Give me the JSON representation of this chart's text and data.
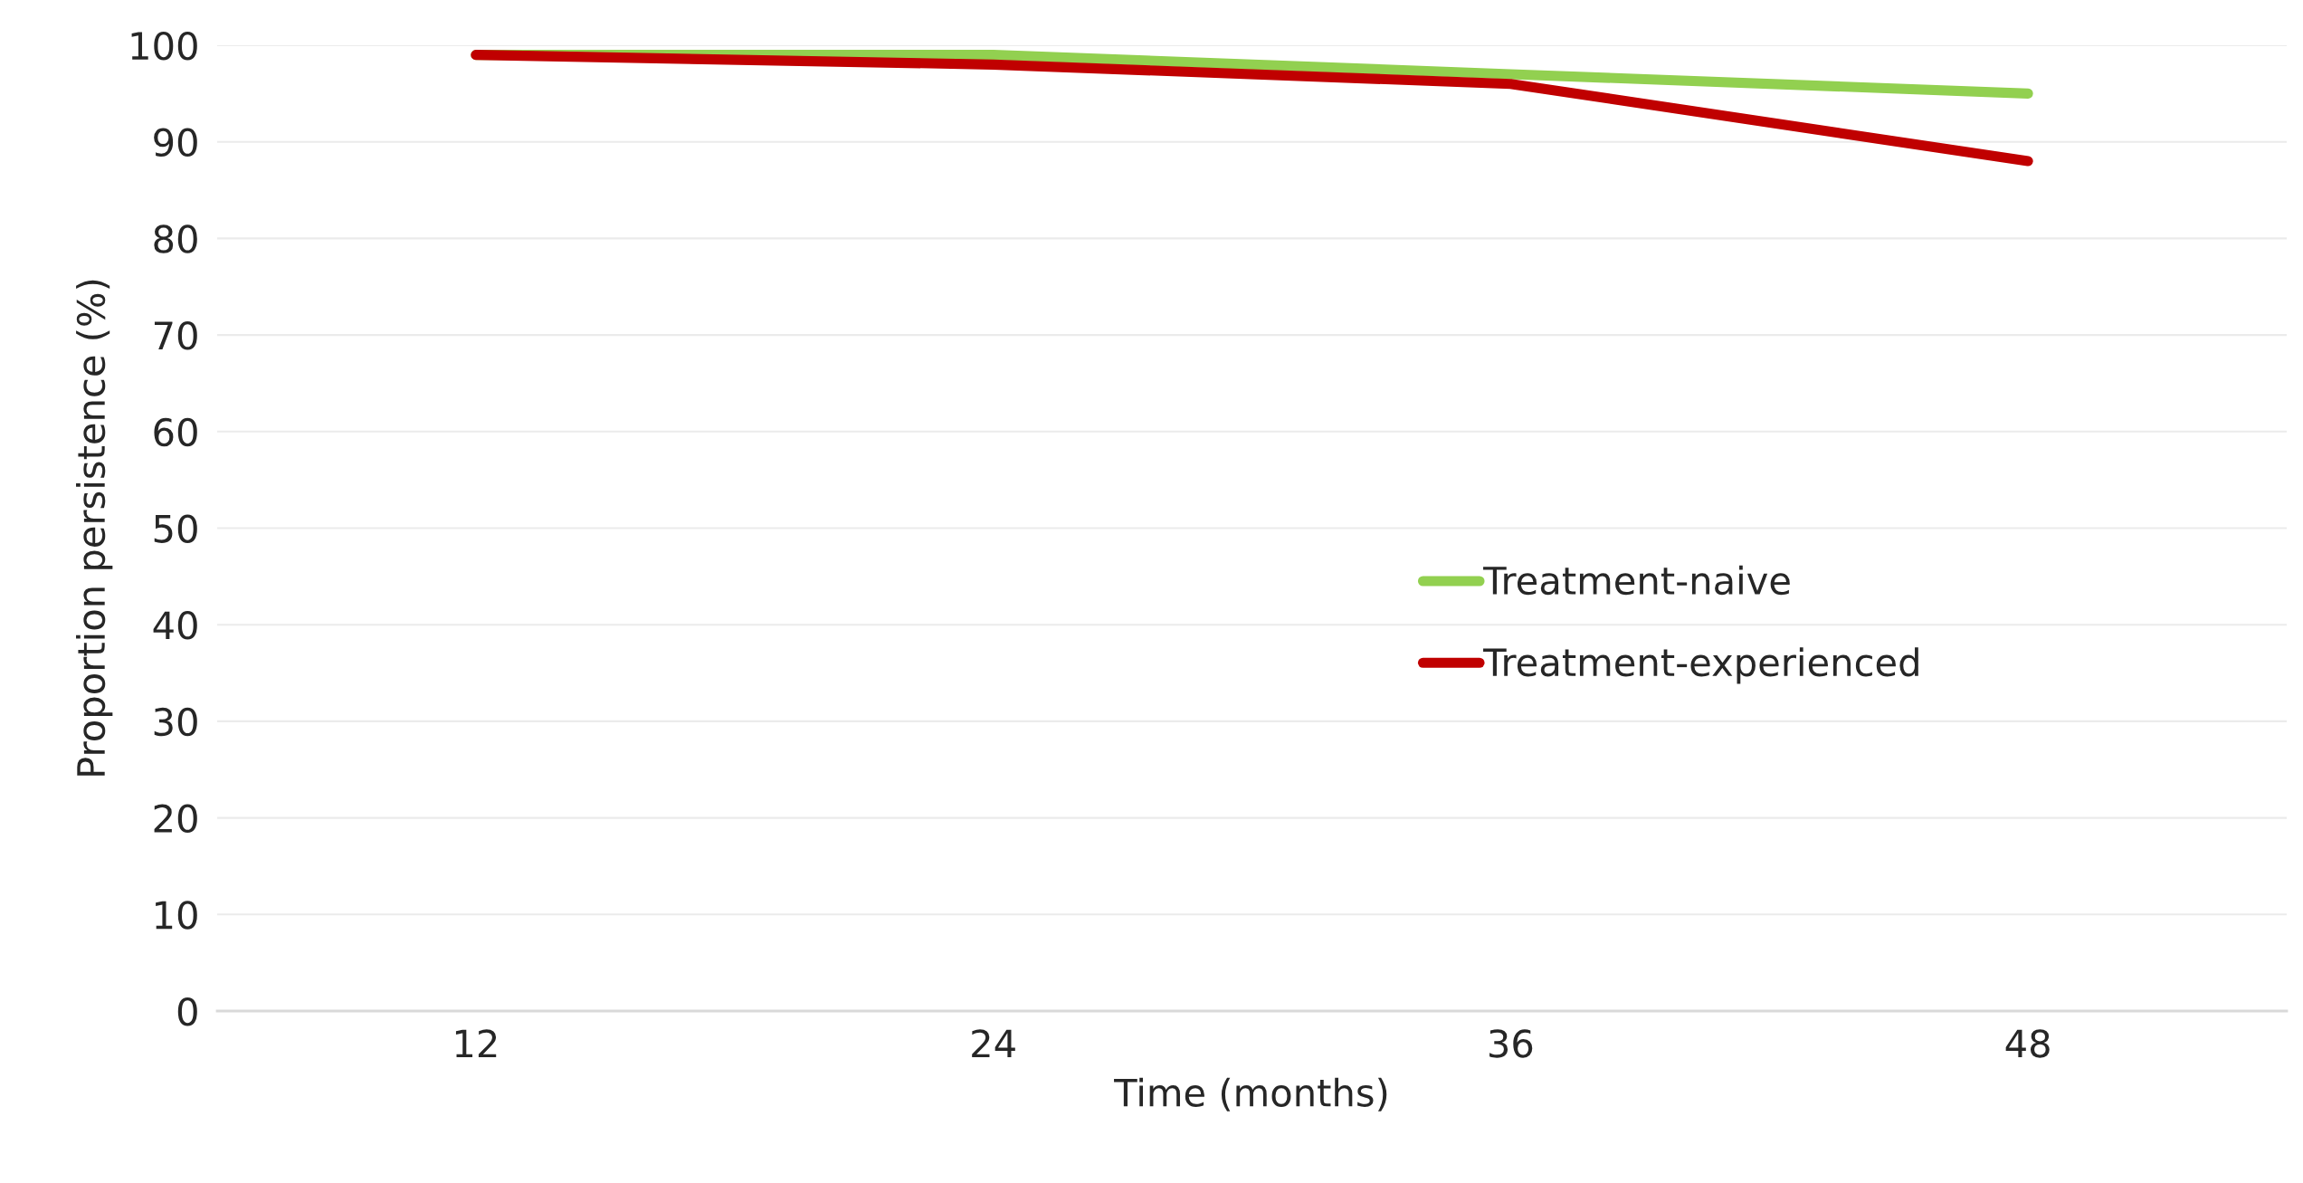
{
  "chart_data": {
    "type": "line",
    "xlabel": "Time (months)",
    "ylabel": "Proportion persistence (%)",
    "categories": [
      "12",
      "24",
      "36",
      "48"
    ],
    "series": [
      {
        "name": "Treatment-naive",
        "color": "#92d050",
        "values": [
          99,
          99,
          97,
          95
        ]
      },
      {
        "name": "Treatment-experienced",
        "color": "#c00000",
        "values": [
          99,
          98,
          96,
          88
        ]
      }
    ],
    "ylim": [
      0,
      100
    ],
    "yticks": [
      0,
      10,
      20,
      30,
      40,
      50,
      60,
      70,
      80,
      90,
      100
    ],
    "grid": "y",
    "legend": "center right",
    "marker": "none",
    "line_style": "solid"
  }
}
